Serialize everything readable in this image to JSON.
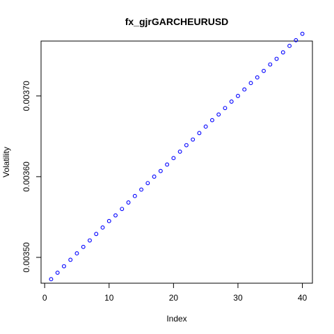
{
  "chart_data": {
    "type": "scatter",
    "title": "fx_gjrGARCHEURUSD",
    "xlabel": "Index",
    "ylabel": "Volatility",
    "x_ticks": [
      0,
      10,
      20,
      30,
      40
    ],
    "y_ticks": [
      0.0035,
      0.0036,
      0.0037
    ],
    "y_tick_labels": [
      "0.00350",
      "0.00360",
      "0.00370"
    ],
    "xlim": [
      -0.56,
      41.56
    ],
    "ylim": [
      0.003468,
      0.003768
    ],
    "grid": false,
    "marker": "open-circle",
    "point_color": "#0000ff",
    "series": [
      {
        "x": [
          1,
          2,
          3,
          4,
          5,
          6,
          7,
          8,
          9,
          10,
          11,
          12,
          13,
          14,
          15,
          16,
          17,
          18,
          19,
          20,
          21,
          22,
          23,
          24,
          25,
          26,
          27,
          28,
          29,
          30,
          31,
          32,
          33,
          34,
          35,
          36,
          37,
          38,
          39,
          40
        ],
        "values": [
          0.003473,
          0.003481,
          0.003489,
          0.003497,
          0.003505,
          0.003513,
          0.003521,
          0.003529,
          0.003537,
          0.003545,
          0.003552,
          0.00356,
          0.003568,
          0.003576,
          0.003584,
          0.003592,
          0.0036,
          0.003607,
          0.003615,
          0.003623,
          0.003631,
          0.003639,
          0.003646,
          0.003654,
          0.003662,
          0.00367,
          0.003677,
          0.003685,
          0.003693,
          0.0037,
          0.003708,
          0.003716,
          0.003723,
          0.003731,
          0.003739,
          0.003746,
          0.003754,
          0.003762,
          0.003769,
          0.003777
        ]
      }
    ]
  }
}
